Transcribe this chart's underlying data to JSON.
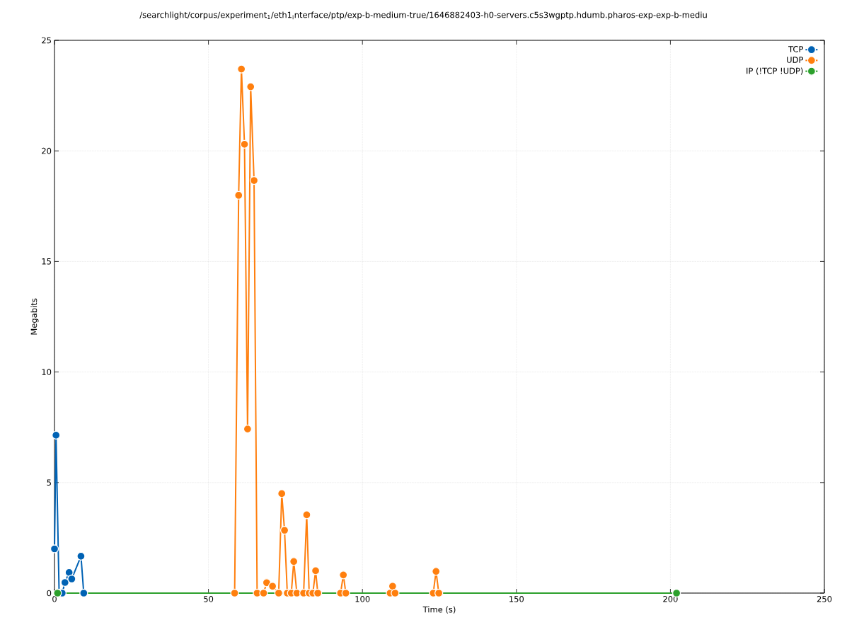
{
  "chart_data": {
    "type": "line",
    "title": "/searchlight/corpus/experiment$_{1}$/eth1$_{i}$nterface/ptp/exp-b-medium-true/1646882403-h0-servers.c5s3wgptp.hdumb.pharos-exp-exp-b-mediu",
    "xlabel": "Time (s)",
    "ylabel": "Megabits",
    "xlim": [
      0,
      250
    ],
    "ylim": [
      0,
      25
    ],
    "xticks": [
      0,
      50,
      100,
      150,
      200,
      250
    ],
    "yticks": [
      0,
      5,
      10,
      15,
      20,
      25
    ],
    "grid": true,
    "legend": "top right",
    "marker": "circle",
    "line_style": "solid",
    "series": [
      {
        "name": "TCP",
        "color": "#0062b4",
        "x": [
          0,
          0.5,
          1.5,
          2.5,
          3.4,
          4.75,
          5.6,
          8.6,
          9.5
        ],
        "values": [
          2.0,
          7.14,
          0,
          0,
          0.48,
          0.93,
          0.64,
          1.67,
          0
        ]
      },
      {
        "name": "UDP",
        "color": "#ff7f0e",
        "x": [
          58.5,
          59.8,
          60.7,
          61.7,
          62.7,
          63.7,
          64.8,
          65.8,
          67.9,
          68.9,
          70.8,
          72.8,
          73.8,
          74.7,
          75.6,
          76.9,
          77.7,
          78.7,
          80.9,
          81.9,
          82.7,
          83.9,
          84.8,
          85.5,
          92.9,
          93.8,
          94.6,
          109.0,
          109.8,
          110.6,
          123.0,
          123.9,
          124.8
        ],
        "values": [
          0,
          17.99,
          23.7,
          20.3,
          7.42,
          22.9,
          18.66,
          0,
          0,
          0.47,
          0.31,
          0,
          4.5,
          2.84,
          0,
          0,
          1.43,
          0,
          0,
          3.54,
          0,
          0,
          1.01,
          0,
          0,
          0.82,
          0,
          0,
          0.31,
          0,
          0,
          0.98,
          0
        ]
      },
      {
        "name": "IP (!TCP  !UDP)",
        "color": "#2ca02c",
        "x": [
          1,
          202
        ],
        "values": [
          0,
          0
        ]
      }
    ]
  }
}
